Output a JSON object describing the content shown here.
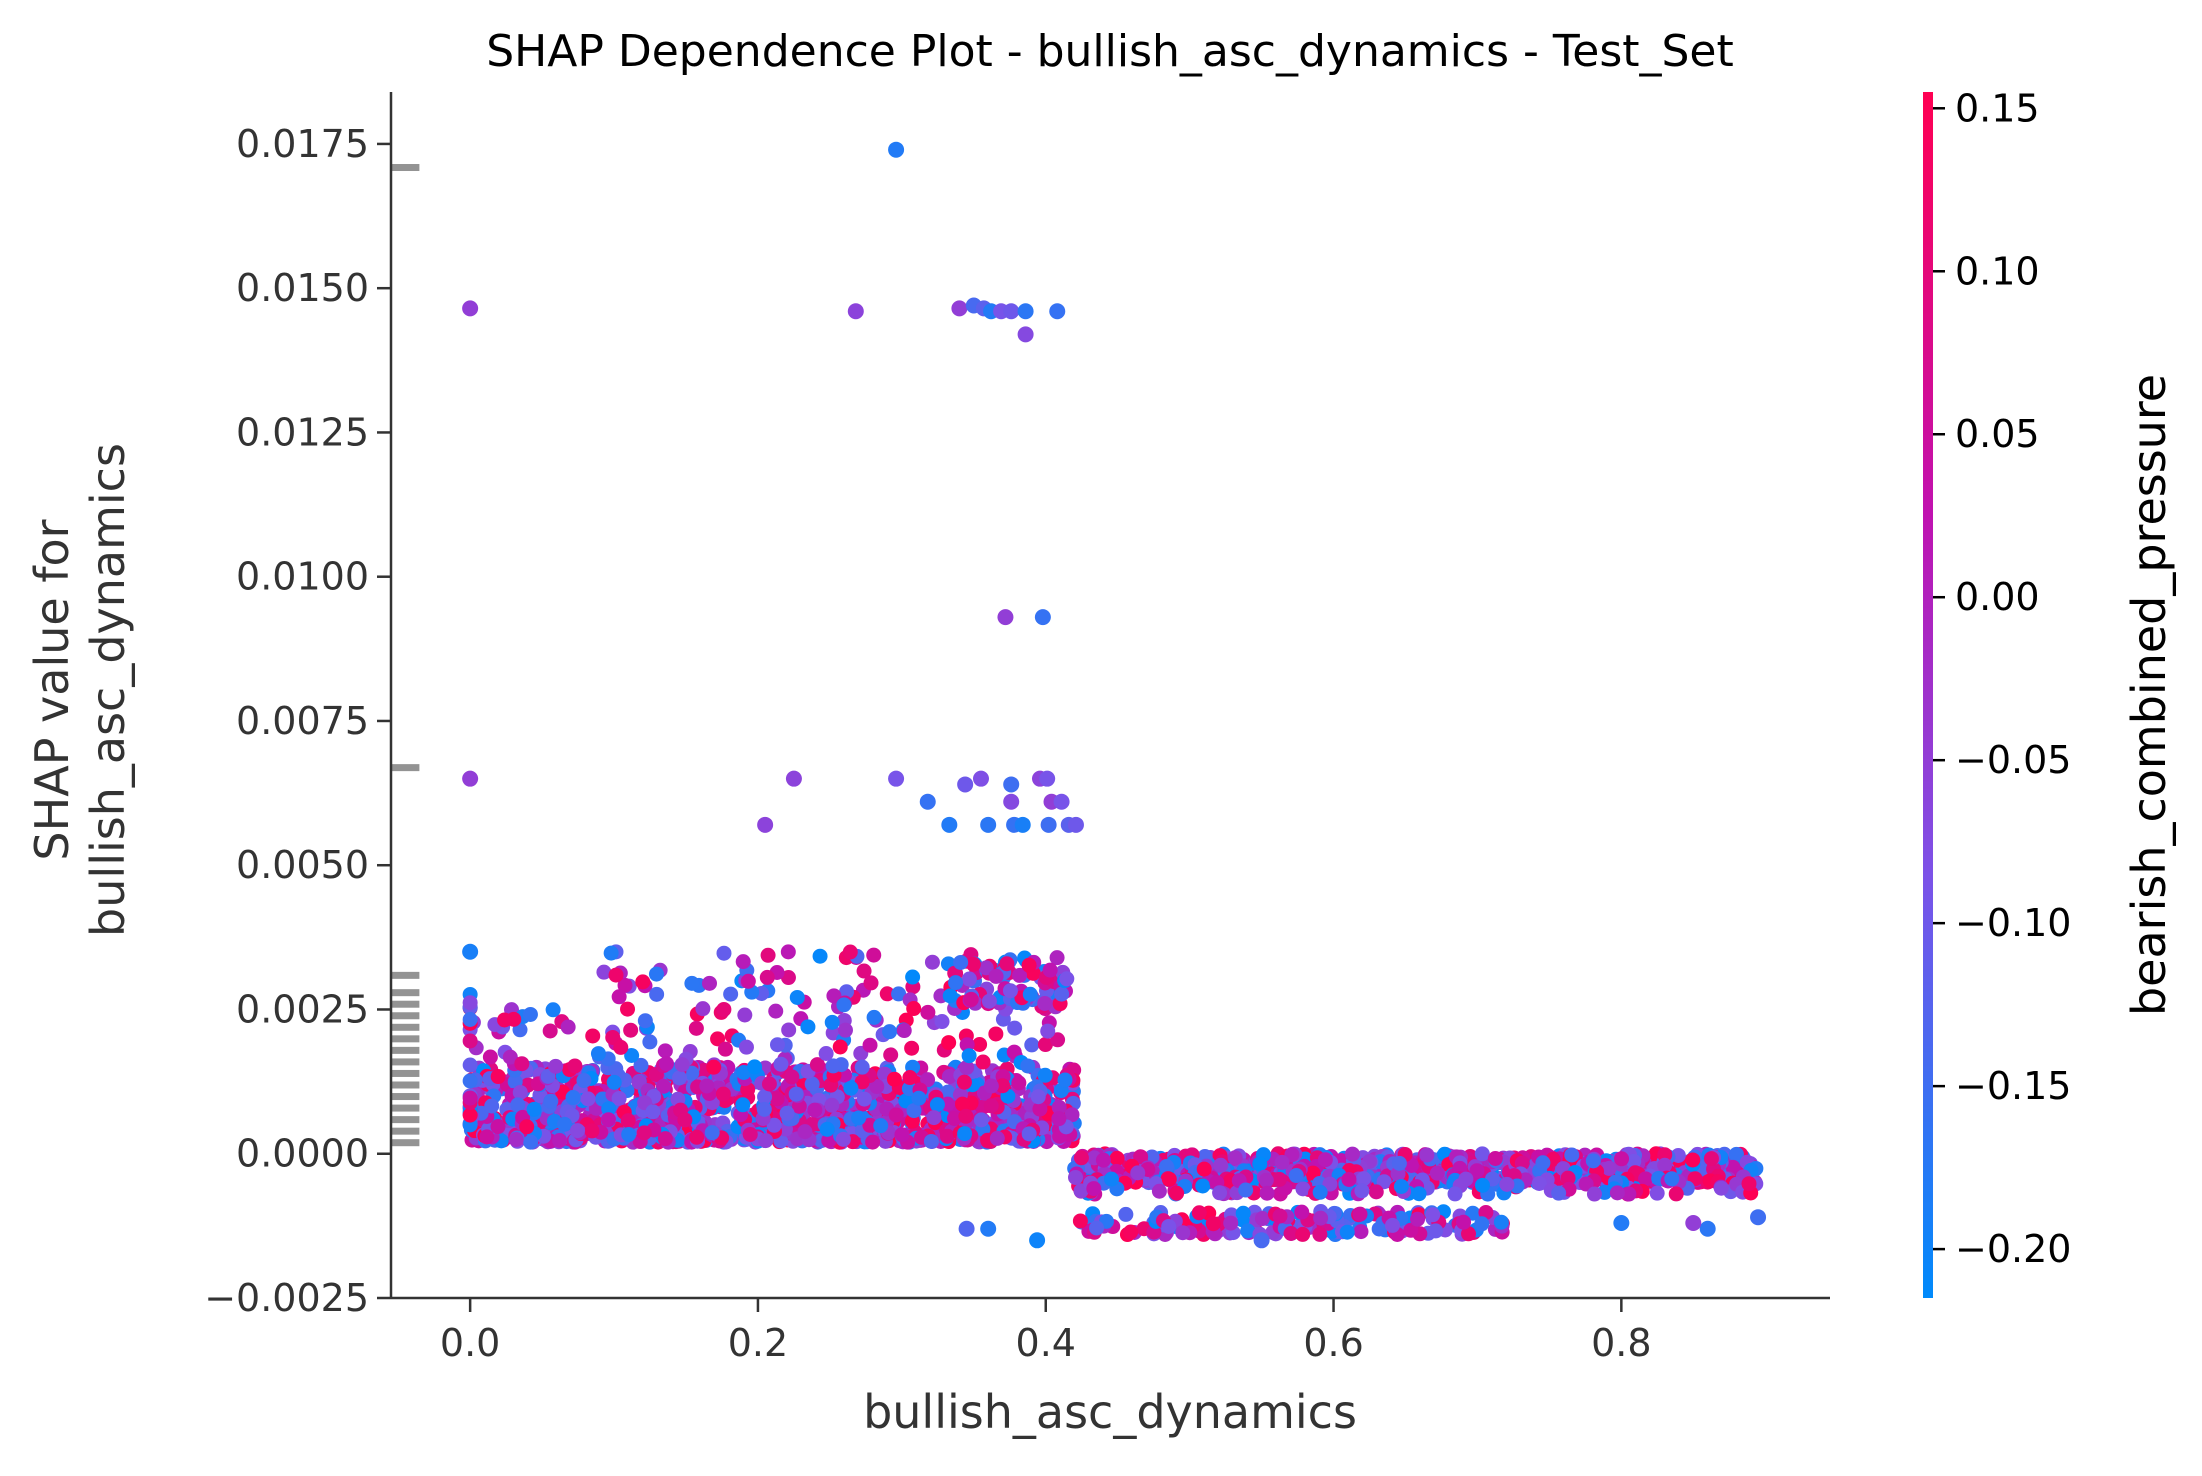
{
  "chart_data": {
    "type": "scatter",
    "title": "SHAP Dependence Plot - bullish_asc_dynamics - Test_Set",
    "xlabel": "bullish_asc_dynamics",
    "ylabel_lines": [
      "SHAP value for",
      "bullish_asc_dynamics"
    ],
    "xlim": [
      -0.055,
      0.945
    ],
    "ylim": [
      -0.0025,
      0.0184
    ],
    "x_ticks": [
      0.0,
      0.2,
      0.4,
      0.6,
      0.8
    ],
    "x_tick_labels": [
      "0.0",
      "0.2",
      "0.4",
      "0.6",
      "0.8"
    ],
    "y_ticks": [
      -0.0025,
      0.0,
      0.0025,
      0.005,
      0.0075,
      0.01,
      0.0125,
      0.015,
      0.0175
    ],
    "y_tick_labels": [
      "−0.0025",
      "0.0000",
      "0.0025",
      "0.0050",
      "0.0075",
      "0.0100",
      "0.0125",
      "0.0150",
      "0.0175"
    ],
    "grid": false,
    "colorbar": {
      "label": "bearish_combined_pressure",
      "range": [
        -0.215,
        0.155
      ],
      "ticks": [
        0.15,
        0.1,
        0.05,
        0.0,
        -0.05,
        -0.1,
        -0.15,
        -0.2
      ],
      "tick_labels": [
        "0.15",
        "0.10",
        "0.05",
        "0.00",
        "−0.05",
        "−0.10",
        "−0.15",
        "−0.20"
      ],
      "colors": [
        "#008afb",
        "#7c52e8",
        "#c012b0",
        "#ff0052"
      ]
    },
    "missing_value_markers": {
      "x": -0.045,
      "y": [
        0.0171,
        0.0067,
        0.0031,
        0.0028,
        0.0026,
        0.0024,
        0.0022,
        0.002,
        0.0018,
        0.0016,
        0.0014,
        0.0012,
        0.001,
        0.0008,
        0.0006,
        0.0004,
        0.0002
      ],
      "color": "#808080"
    },
    "points": [
      {
        "x": 0.296,
        "y": 0.0174,
        "c": -0.18
      },
      {
        "x": 0.0,
        "y": 0.01465,
        "c": -0.05
      },
      {
        "x": 0.268,
        "y": 0.0146,
        "c": -0.06
      },
      {
        "x": 0.34,
        "y": 0.01465,
        "c": -0.05
      },
      {
        "x": 0.35,
        "y": 0.0147,
        "c": -0.14
      },
      {
        "x": 0.357,
        "y": 0.01465,
        "c": -0.12
      },
      {
        "x": 0.362,
        "y": 0.0146,
        "c": -0.18
      },
      {
        "x": 0.369,
        "y": 0.0146,
        "c": -0.09
      },
      {
        "x": 0.376,
        "y": 0.0146,
        "c": -0.1
      },
      {
        "x": 0.386,
        "y": 0.0146,
        "c": -0.17
      },
      {
        "x": 0.408,
        "y": 0.0146,
        "c": -0.16
      },
      {
        "x": 0.386,
        "y": 0.0142,
        "c": -0.07
      },
      {
        "x": 0.372,
        "y": 0.0093,
        "c": -0.05
      },
      {
        "x": 0.398,
        "y": 0.0093,
        "c": -0.16
      },
      {
        "x": 0.0,
        "y": 0.0065,
        "c": -0.05
      },
      {
        "x": 0.225,
        "y": 0.0065,
        "c": -0.06
      },
      {
        "x": 0.296,
        "y": 0.0065,
        "c": -0.09
      },
      {
        "x": 0.344,
        "y": 0.0064,
        "c": -0.1
      },
      {
        "x": 0.355,
        "y": 0.0065,
        "c": -0.08
      },
      {
        "x": 0.376,
        "y": 0.0064,
        "c": -0.15
      },
      {
        "x": 0.396,
        "y": 0.0065,
        "c": -0.06
      },
      {
        "x": 0.401,
        "y": 0.0065,
        "c": -0.09
      },
      {
        "x": 0.205,
        "y": 0.0057,
        "c": -0.06
      },
      {
        "x": 0.318,
        "y": 0.0061,
        "c": -0.16
      },
      {
        "x": 0.376,
        "y": 0.0061,
        "c": -0.07
      },
      {
        "x": 0.404,
        "y": 0.0061,
        "c": -0.05
      },
      {
        "x": 0.411,
        "y": 0.0061,
        "c": -0.09
      },
      {
        "x": 0.333,
        "y": 0.0057,
        "c": -0.18
      },
      {
        "x": 0.36,
        "y": 0.0057,
        "c": -0.17
      },
      {
        "x": 0.378,
        "y": 0.0057,
        "c": -0.16
      },
      {
        "x": 0.384,
        "y": 0.0057,
        "c": -0.19
      },
      {
        "x": 0.402,
        "y": 0.0057,
        "c": -0.15
      },
      {
        "x": 0.416,
        "y": 0.0057,
        "c": -0.12
      },
      {
        "x": 0.421,
        "y": 0.0057,
        "c": -0.1
      },
      {
        "x": 0.0,
        "y": 0.0035,
        "c": -0.19
      },
      {
        "x": 0.345,
        "y": -0.0013,
        "c": -0.13
      },
      {
        "x": 0.36,
        "y": -0.0013,
        "c": -0.18
      },
      {
        "x": 0.394,
        "y": -0.0015,
        "c": -0.2
      },
      {
        "x": 0.55,
        "y": -0.0015,
        "c": -0.14
      },
      {
        "x": 0.86,
        "y": -0.0013,
        "c": -0.17
      },
      {
        "x": 0.895,
        "y": -0.0011,
        "c": -0.15
      },
      {
        "x": 0.8,
        "y": -0.0012,
        "c": -0.18
      },
      {
        "x": 0.85,
        "y": -0.0012,
        "c": -0.05
      }
    ],
    "point_clouds": [
      {
        "x": [
          0.0,
          0.42
        ],
        "y": [
          0.0002,
          0.0015
        ],
        "count": 1300
      },
      {
        "x": [
          0.0,
          0.42
        ],
        "y": [
          0.0015,
          0.0025
        ],
        "count": 110
      },
      {
        "x": [
          0.09,
          0.42
        ],
        "y": [
          0.0025,
          0.0035
        ],
        "count": 80
      },
      {
        "x": [
          0.33,
          0.42
        ],
        "y": [
          0.0026,
          0.0034
        ],
        "count": 70
      },
      {
        "x": [
          0.0,
          0.0
        ],
        "y": [
          0.0005,
          0.0028
        ],
        "count": 22
      },
      {
        "x": [
          0.42,
          0.895
        ],
        "y": [
          -0.0005,
          0.0
        ],
        "count": 950
      },
      {
        "x": [
          0.42,
          0.895
        ],
        "y": [
          -0.0007,
          -0.0004
        ],
        "count": 130
      },
      {
        "x": [
          0.42,
          0.72
        ],
        "y": [
          -0.0014,
          -0.001
        ],
        "count": 160
      }
    ]
  }
}
